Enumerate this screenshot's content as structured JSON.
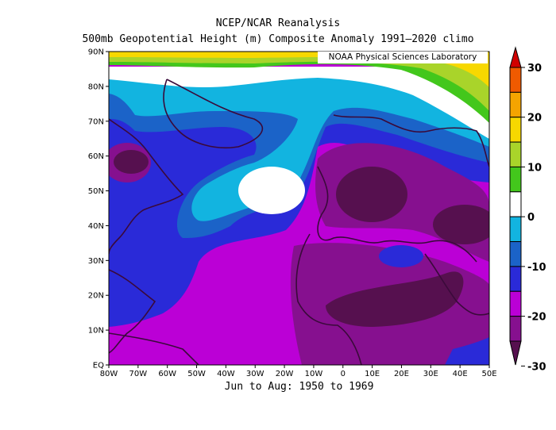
{
  "title": "NCEP/NCAR Reanalysis",
  "subtitle": "500mb Geopotential Height (m) Composite Anomaly 1991–2020 climo",
  "credit": "NOAA Physical Sciences Laboratory",
  "period": "Jun to Aug: 1950 to 1969",
  "lat_labels": [
    "90N",
    "80N",
    "70N",
    "60N",
    "50N",
    "40N",
    "30N",
    "20N",
    "10N",
    "EQ"
  ],
  "lon_labels": [
    "80W",
    "70W",
    "60W",
    "50W",
    "40W",
    "30W",
    "20W",
    "10W",
    "0",
    "10E",
    "20E",
    "30E",
    "40E",
    "50E"
  ],
  "colorbar": {
    "labels": [
      "30",
      "20",
      "10",
      "0",
      "-10",
      "-20",
      "-30"
    ],
    "colors": [
      "#d10000",
      "#f05a00",
      "#f5a400",
      "#f7d800",
      "#a9d42a",
      "#43c71c",
      "#ffffff",
      "#12b4e0",
      "#1b63c8",
      "#2a2ad8",
      "#bb00d6",
      "#86108f",
      "#56104f"
    ]
  },
  "chart_data": {
    "type": "heatmap",
    "variable": "500mb Geopotential Height (m) Composite Anomaly",
    "x_range": [
      "80W",
      "50E"
    ],
    "y_range": [
      "EQ",
      "90N"
    ],
    "levels": [
      -30,
      -25,
      -20,
      -15,
      -10,
      -5,
      0,
      5,
      10,
      15,
      20,
      25,
      30
    ]
  }
}
